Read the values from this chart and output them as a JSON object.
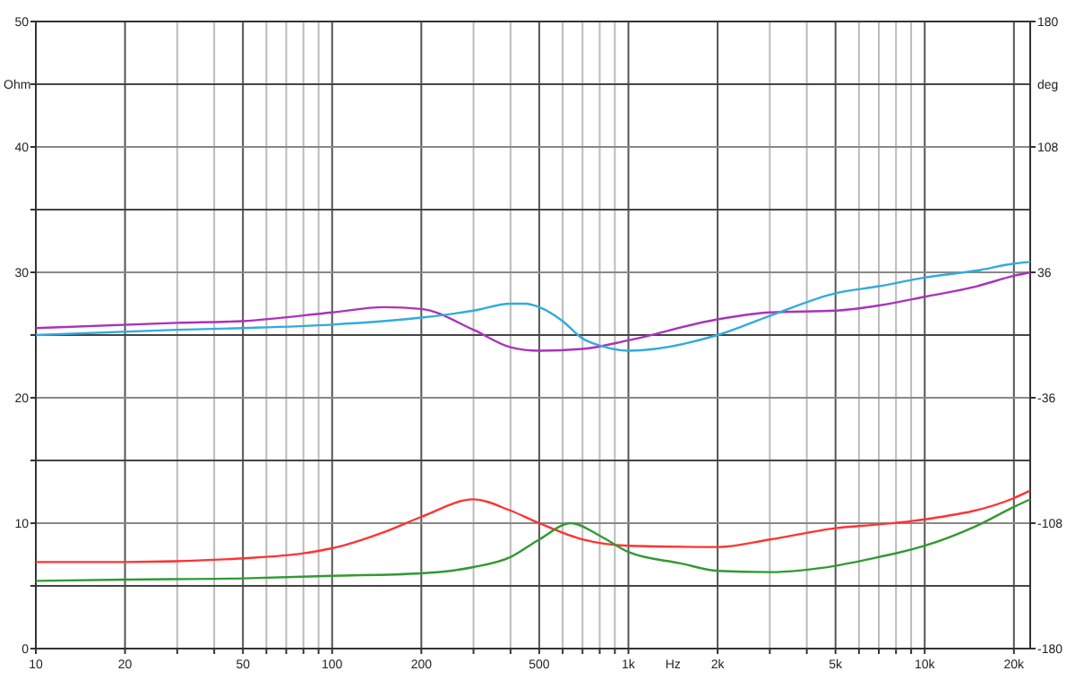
{
  "chart_data": {
    "type": "line",
    "xlabel": "Hz",
    "ylabel": "Ohm",
    "y2label": "deg",
    "log": "x",
    "grid": true,
    "xlim": [
      10,
      22700
    ],
    "xticks": [
      10,
      20,
      {
        "value": 30,
        "label": null
      },
      {
        "value": 40,
        "label": null
      },
      50,
      {
        "value": 60,
        "label": null
      },
      {
        "value": 70,
        "label": null
      },
      {
        "value": 80,
        "label": null
      },
      {
        "value": 90,
        "label": null
      },
      100,
      200,
      {
        "value": 300,
        "label": null
      },
      {
        "value": 400,
        "label": null
      },
      500,
      {
        "value": 600,
        "label": null
      },
      {
        "value": 700,
        "label": null
      },
      {
        "value": 800,
        "label": null
      },
      {
        "value": 900,
        "label": null
      },
      {
        "value": 1000,
        "label": "1k"
      },
      {
        "value": 2000,
        "label": "2k"
      },
      {
        "value": 3000,
        "label": null
      },
      {
        "value": 4000,
        "label": null
      },
      {
        "value": 5000,
        "label": "5k"
      },
      {
        "value": 6000,
        "label": null
      },
      {
        "value": 7000,
        "label": null
      },
      {
        "value": 8000,
        "label": null
      },
      {
        "value": 9000,
        "label": null
      },
      {
        "value": 10000,
        "label": "10k"
      },
      {
        "value": 20000,
        "label": "20k"
      }
    ],
    "ylim": [
      0,
      50
    ],
    "yticks": [
      0,
      {
        "value": 5,
        "label": null
      },
      10,
      {
        "value": 15,
        "label": null
      },
      20,
      {
        "value": 25,
        "label": null
      },
      30,
      {
        "value": 35,
        "label": null
      },
      40,
      {
        "value": 45,
        "label": null
      },
      50
    ],
    "y2lim": [
      -180,
      180
    ],
    "y2ticks": [
      -180,
      -108,
      -36,
      36,
      108,
      180
    ],
    "series": [
      {
        "color": "#ff3333",
        "x": [
          10,
          20,
          50,
          80,
          100,
          150,
          200,
          300,
          400,
          500,
          700,
          1000,
          2000,
          3000,
          5000,
          7000,
          10000,
          20000,
          22700
        ],
        "values": [
          6.9,
          6.9,
          7.2,
          7.6,
          8.0,
          9.3,
          10.5,
          11.9,
          11.0,
          10.0,
          8.7,
          8.2,
          8.1,
          8.7,
          9.6,
          9.9,
          10.3,
          12.0,
          12.6
        ]
      },
      {
        "color": "#339933",
        "x": [
          10,
          20,
          50,
          100,
          200,
          300,
          400,
          500,
          640,
          800,
          1000,
          1500,
          2000,
          3000,
          5000,
          7000,
          10000,
          15000,
          20000,
          22700
        ],
        "values": [
          5.4,
          5.5,
          5.6,
          5.8,
          6.0,
          6.5,
          7.3,
          8.7,
          10.0,
          9.0,
          7.7,
          6.8,
          6.2,
          6.1,
          6.6,
          7.3,
          8.2,
          9.8,
          11.3,
          11.9
        ]
      },
      {
        "color": "#aa33bb",
        "axis": "y2",
        "x": [
          10,
          30,
          50,
          100,
          150,
          200,
          300,
          400,
          500,
          700,
          1000,
          2000,
          3000,
          5000,
          7000,
          10000,
          15000,
          20000,
          22700
        ],
        "values": [
          4,
          7,
          8,
          13,
          16,
          15,
          3,
          -7,
          -9,
          -8,
          -3,
          9,
          13,
          14,
          17,
          22,
          28,
          34,
          36
        ]
      },
      {
        "color": "#33aadd",
        "axis": "y2",
        "x": [
          10,
          30,
          50,
          100,
          200,
          300,
          400,
          450,
          500,
          600,
          700,
          800,
          1000,
          2000,
          3000,
          5000,
          7000,
          10000,
          15000,
          20000,
          22700
        ],
        "values": [
          0,
          3,
          4,
          6,
          10,
          14,
          18,
          18,
          16,
          8,
          -2,
          -6,
          -9,
          0,
          11,
          24,
          28,
          33,
          37,
          41,
          42
        ]
      }
    ]
  }
}
